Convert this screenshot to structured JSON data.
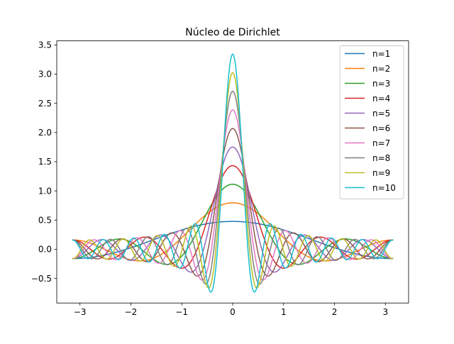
{
  "chart_data": {
    "type": "line",
    "title": "Núcleo de Dirichlet",
    "xlabel": "",
    "ylabel": "",
    "xlim": [
      -3.4557,
      3.4557
    ],
    "ylim": [
      -0.92,
      3.57
    ],
    "x_domain": [
      -3.14159,
      3.14159
    ],
    "function": "D_n(x) = sin((n + 1/2) x) / (2π sin(x/2))",
    "x_ticks": [
      -3,
      -2,
      -1,
      0,
      1,
      2,
      3
    ],
    "x_tick_labels": [
      "−3",
      "−2",
      "−1",
      "0",
      "1",
      "2",
      "3"
    ],
    "y_ticks": [
      -0.5,
      0.0,
      0.5,
      1.0,
      1.5,
      2.0,
      2.5,
      3.0,
      3.5
    ],
    "y_tick_labels": [
      "−0.5",
      "0.0",
      "0.5",
      "1.0",
      "1.5",
      "2.0",
      "2.5",
      "3.0",
      "3.5"
    ],
    "grid": false,
    "legend_position": "top-right",
    "series": [
      {
        "name": "n=1",
        "n": 1,
        "color": "#1f77b4"
      },
      {
        "name": "n=2",
        "n": 2,
        "color": "#ff7f0e"
      },
      {
        "name": "n=3",
        "n": 3,
        "color": "#2ca02c"
      },
      {
        "name": "n=4",
        "n": 4,
        "color": "#d62728"
      },
      {
        "name": "n=5",
        "n": 5,
        "color": "#9467bd"
      },
      {
        "name": "n=6",
        "n": 6,
        "color": "#8c564b"
      },
      {
        "name": "n=7",
        "n": 7,
        "color": "#e377c2"
      },
      {
        "name": "n=8",
        "n": 8,
        "color": "#7f7f7f"
      },
      {
        "name": "n=9",
        "n": 9,
        "color": "#bcbd22"
      },
      {
        "name": "n=10",
        "n": 10,
        "color": "#17becf"
      }
    ]
  }
}
